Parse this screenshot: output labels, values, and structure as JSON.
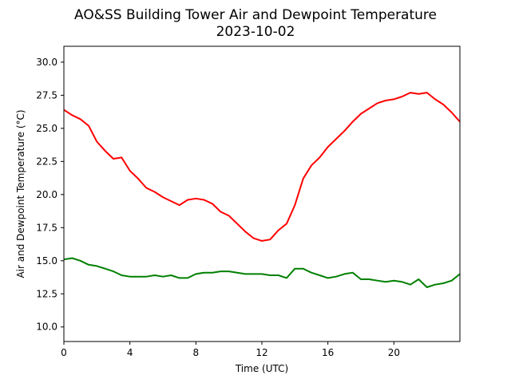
{
  "chart_data": {
    "type": "line",
    "title": "AO&SS Building Tower Air and Dewpoint Temperature",
    "subtitle": "2023-10-02",
    "xlabel": "Time (UTC)",
    "ylabel": "Air and Dewpoint Temperature (°C)",
    "xlim": [
      0,
      24
    ],
    "ylim": [
      8.9,
      31.2
    ],
    "xticks": [
      0,
      4,
      8,
      12,
      16,
      20
    ],
    "xtick_labels": [
      "0",
      "4",
      "8",
      "12",
      "16",
      "20"
    ],
    "yticks": [
      10.0,
      12.5,
      15.0,
      17.5,
      20.0,
      22.5,
      25.0,
      27.5,
      30.0
    ],
    "ytick_labels": [
      "10.0",
      "12.5",
      "15.0",
      "17.5",
      "20.0",
      "22.5",
      "25.0",
      "27.5",
      "30.0"
    ],
    "grid": false,
    "series": [
      {
        "color": "#ff0000",
        "x": [
          0,
          0.5,
          1,
          1.5,
          2,
          2.5,
          3,
          3.5,
          4,
          4.5,
          5,
          5.5,
          6,
          6.5,
          7,
          7.5,
          8,
          8.5,
          9,
          9.5,
          10,
          10.5,
          11,
          11.5,
          12,
          12.5,
          13,
          13.5,
          14,
          14.5,
          15,
          15.5,
          16,
          16.5,
          17,
          17.5,
          18,
          18.5,
          19,
          19.5,
          20,
          20.5,
          21,
          21.5,
          22,
          22.5,
          23,
          23.5,
          24
        ],
        "y": [
          26.4,
          26.0,
          25.7,
          25.2,
          24.0,
          23.3,
          22.7,
          22.8,
          21.8,
          21.2,
          20.5,
          20.2,
          19.8,
          19.5,
          19.2,
          19.6,
          19.7,
          19.6,
          19.3,
          18.7,
          18.4,
          17.8,
          17.2,
          16.7,
          16.5,
          16.6,
          17.3,
          17.8,
          19.2,
          21.2,
          22.2,
          22.8,
          23.6,
          24.2,
          24.8,
          25.5,
          26.1,
          26.5,
          26.9,
          27.1,
          27.2,
          27.4,
          27.7,
          27.6,
          27.7,
          27.2,
          26.8,
          26.2,
          25.5
        ]
      },
      {
        "color": "#008000",
        "x": [
          0,
          0.5,
          1,
          1.5,
          2,
          2.5,
          3,
          3.5,
          4,
          4.5,
          5,
          5.5,
          6,
          6.5,
          7,
          7.5,
          8,
          8.5,
          9,
          9.5,
          10,
          10.5,
          11,
          11.5,
          12,
          12.5,
          13,
          13.5,
          14,
          14.5,
          15,
          15.5,
          16,
          16.5,
          17,
          17.5,
          18,
          18.5,
          19,
          19.5,
          20,
          20.5,
          21,
          21.5,
          22,
          22.5,
          23,
          23.5,
          24
        ],
        "y": [
          15.1,
          15.2,
          15.0,
          14.7,
          14.6,
          14.4,
          14.2,
          13.9,
          13.8,
          13.8,
          13.8,
          13.9,
          13.8,
          13.9,
          13.7,
          13.7,
          14.0,
          14.1,
          14.1,
          14.2,
          14.2,
          14.1,
          14.0,
          14.0,
          14.0,
          13.9,
          13.9,
          13.7,
          14.4,
          14.4,
          14.1,
          13.9,
          13.7,
          13.8,
          14.0,
          14.1,
          13.6,
          13.6,
          13.5,
          13.4,
          13.5,
          13.4,
          13.2,
          13.6,
          13.0,
          13.2,
          13.3,
          13.5,
          14.0
        ]
      }
    ]
  }
}
